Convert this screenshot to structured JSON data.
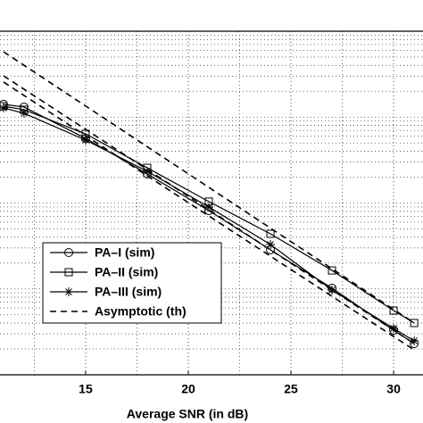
{
  "chart_data": {
    "type": "line",
    "x_label": "Average SNR (in dB)",
    "xlim": [
      10.83,
      31.43
    ],
    "xticks": [
      15,
      20,
      25,
      30
    ],
    "ylim": [
      1e-05,
      0.1
    ],
    "log_scale_y": true,
    "grid": true,
    "legend_position": "lower left",
    "series": [
      {
        "name": "PA–I (sim)",
        "color": "#000000",
        "marker": "circle",
        "dash": false,
        "x": [
          11,
          12,
          15,
          18,
          21,
          24,
          27,
          30,
          31
        ],
        "values": [
          0.0141,
          0.0131,
          0.00566,
          0.00218,
          0.000817,
          0.000285,
          0.000102,
          3.3e-05,
          2.31e-05
        ]
      },
      {
        "name": "PA–II (sim)",
        "color": "#000000",
        "marker": "square",
        "dash": false,
        "x": [
          11,
          12,
          15,
          18,
          21,
          24,
          27,
          30,
          31
        ],
        "values": [
          0.0134,
          0.0122,
          0.00638,
          0.00257,
          0.00104,
          0.000438,
          0.000164,
          5.6e-05,
          4.01e-05
        ]
      },
      {
        "name": "PA–III (sim)",
        "color": "#000000",
        "marker": "star",
        "dash": false,
        "x": [
          11,
          12,
          15,
          18,
          21,
          24,
          27,
          30,
          31
        ],
        "values": [
          0.0128,
          0.0111,
          0.0054,
          0.00234,
          0.000898,
          0.000329,
          9.71e-05,
          3.47e-05,
          2.48e-05
        ]
      },
      {
        "name": "Asymptotic (th)",
        "color": "#000000",
        "marker": "none",
        "dash": true,
        "x": [
          11,
          31
        ],
        "values": [
          0.0577,
          4.01e-05
        ]
      },
      {
        "name": "Asymptotic (th)",
        "color": "#000000",
        "marker": "none",
        "dash": true,
        "x": [
          11,
          31
        ],
        "values": [
          0.0303,
          2.31e-05
        ]
      },
      {
        "name": "Asymptotic (th)",
        "color": "#000000",
        "marker": "none",
        "dash": true,
        "x": [
          11,
          31
        ],
        "values": [
          0.0256,
          1.95e-05
        ]
      }
    ]
  }
}
